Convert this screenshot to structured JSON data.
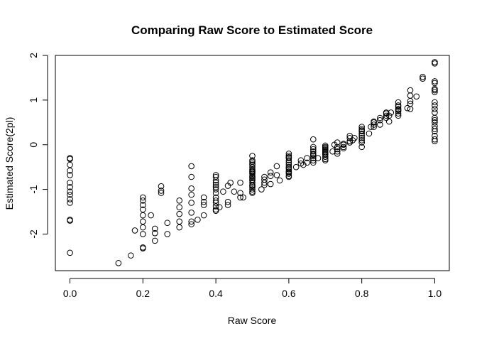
{
  "chart_data": {
    "type": "scatter",
    "title": "Comparing Raw Score to Estimated Score",
    "xlabel": "Raw Score",
    "ylabel": "Estimated Score(2pl)",
    "xlim": [
      -0.04,
      1.04
    ],
    "ylim": [
      -2.82,
      2.0
    ],
    "xticks": [
      0.0,
      0.2,
      0.4,
      0.6,
      0.8,
      1.0
    ],
    "xtick_labels": [
      "0.0",
      "0.2",
      "0.4",
      "0.6",
      "0.8",
      "1.0"
    ],
    "yticks": [
      -2,
      -1,
      0,
      1,
      2
    ],
    "ytick_labels": [
      "-2",
      "-1",
      "0",
      "1",
      "2"
    ],
    "marker": "open-circle",
    "grid": false,
    "series": [
      {
        "x": [
          0.0,
          0.0,
          0.0,
          0.0,
          0.0,
          0.0,
          0.0,
          0.0,
          0.0,
          0.0,
          0.0,
          0.0,
          0.0,
          0.0,
          0.133,
          0.167,
          0.178,
          0.2,
          0.2,
          0.2,
          0.2,
          0.2,
          0.2,
          0.2,
          0.2,
          0.2,
          0.2,
          0.222,
          0.233,
          0.233,
          0.233,
          0.25,
          0.25,
          0.25,
          0.267,
          0.267,
          0.3,
          0.3,
          0.3,
          0.3,
          0.3,
          0.333,
          0.333,
          0.333,
          0.333,
          0.333,
          0.333,
          0.333,
          0.333,
          0.35,
          0.367,
          0.367,
          0.367,
          0.367,
          0.4,
          0.4,
          0.4,
          0.4,
          0.4,
          0.4,
          0.4,
          0.4,
          0.4,
          0.4,
          0.4,
          0.4,
          0.4,
          0.4,
          0.41,
          0.42,
          0.433,
          0.433,
          0.433,
          0.44,
          0.45,
          0.467,
          0.467,
          0.467,
          0.475,
          0.5,
          0.5,
          0.5,
          0.5,
          0.5,
          0.5,
          0.5,
          0.5,
          0.5,
          0.5,
          0.5,
          0.5,
          0.5,
          0.5,
          0.5,
          0.5,
          0.5,
          0.5,
          0.5,
          0.5,
          0.5,
          0.5,
          0.5,
          0.525,
          0.533,
          0.533,
          0.533,
          0.533,
          0.55,
          0.55,
          0.55,
          0.567,
          0.567,
          0.575,
          0.6,
          0.6,
          0.6,
          0.6,
          0.6,
          0.6,
          0.6,
          0.6,
          0.6,
          0.6,
          0.6,
          0.6,
          0.6,
          0.6,
          0.6,
          0.62,
          0.633,
          0.633,
          0.64,
          0.65,
          0.65,
          0.667,
          0.667,
          0.667,
          0.667,
          0.667,
          0.667,
          0.667,
          0.667,
          0.667,
          0.667,
          0.68,
          0.7,
          0.7,
          0.7,
          0.7,
          0.7,
          0.7,
          0.7,
          0.7,
          0.7,
          0.7,
          0.7,
          0.7,
          0.72,
          0.725,
          0.733,
          0.733,
          0.733,
          0.733,
          0.733,
          0.75,
          0.75,
          0.75,
          0.75,
          0.767,
          0.767,
          0.767,
          0.767,
          0.775,
          0.78,
          0.8,
          0.8,
          0.8,
          0.8,
          0.8,
          0.8,
          0.8,
          0.8,
          0.8,
          0.8,
          0.82,
          0.825,
          0.833,
          0.833,
          0.833,
          0.833,
          0.85,
          0.85,
          0.85,
          0.867,
          0.867,
          0.867,
          0.867,
          0.875,
          0.875,
          0.88,
          0.9,
          0.9,
          0.9,
          0.9,
          0.9,
          0.9,
          0.9,
          0.9,
          0.925,
          0.933,
          0.933,
          0.933,
          0.933,
          0.933,
          0.95,
          0.967,
          0.967,
          1.0,
          1.0,
          1.0,
          1.0,
          1.0,
          1.0,
          1.0,
          1.0,
          1.0,
          1.0,
          1.0,
          1.0,
          1.0,
          1.0,
          1.0,
          1.0,
          1.0,
          1.0,
          1.0,
          1.0
        ],
        "y": [
          -0.32,
          -0.45,
          -0.58,
          -0.68,
          -0.85,
          -0.95,
          -1.05,
          -1.12,
          -1.22,
          -1.3,
          -1.68,
          -1.7,
          -2.42,
          -0.3,
          -2.65,
          -2.48,
          -1.92,
          -1.18,
          -1.25,
          -1.35,
          -1.45,
          -1.58,
          -1.72,
          -1.85,
          -2.0,
          -2.3,
          -2.32,
          -1.58,
          -1.88,
          -1.98,
          -2.15,
          -0.93,
          -1.03,
          -1.08,
          -1.75,
          -2.0,
          -1.25,
          -1.4,
          -1.55,
          -1.72,
          -1.85,
          -0.48,
          -0.72,
          -0.98,
          -1.12,
          -1.3,
          -1.52,
          -1.72,
          -1.78,
          -1.68,
          -1.18,
          -1.28,
          -1.35,
          -1.58,
          -0.68,
          -0.72,
          -0.8,
          -0.9,
          -1.0,
          -1.08,
          -1.18,
          -1.25,
          -1.3,
          -1.38,
          -1.45,
          -1.48,
          -0.85,
          -0.95,
          -1.4,
          -1.05,
          -0.92,
          -1.28,
          -1.35,
          -0.85,
          -1.05,
          -0.85,
          -1.08,
          -1.18,
          -1.18,
          -0.25,
          -0.35,
          -0.42,
          -0.5,
          -0.55,
          -0.6,
          -0.65,
          -0.7,
          -0.75,
          -0.8,
          -0.85,
          -0.9,
          -0.95,
          -1.0,
          -1.05,
          -1.08,
          -0.38,
          -0.45,
          -0.58,
          -0.62,
          -0.72,
          -0.78,
          -0.92,
          -1.0,
          -0.78,
          -0.85,
          -0.72,
          -0.9,
          -0.62,
          -0.7,
          -0.88,
          -0.48,
          -0.68,
          -0.8,
          -0.2,
          -0.25,
          -0.3,
          -0.35,
          -0.4,
          -0.45,
          -0.5,
          -0.55,
          -0.6,
          -0.65,
          -0.7,
          -0.28,
          -0.52,
          -0.62,
          -0.72,
          -0.5,
          -0.35,
          -0.42,
          -0.45,
          -0.3,
          -0.4,
          0.12,
          -0.1,
          -0.15,
          -0.2,
          -0.25,
          -0.3,
          -0.35,
          -0.4,
          -0.05,
          -0.22,
          -0.3,
          -0.02,
          -0.07,
          -0.12,
          -0.17,
          -0.22,
          -0.27,
          -0.32,
          -0.05,
          -0.1,
          -0.15,
          -0.2,
          -0.35,
          -0.15,
          0.0,
          0.05,
          -0.05,
          -0.1,
          -0.15,
          -0.2,
          0.0,
          -0.05,
          -0.08,
          0.02,
          0.05,
          0.08,
          0.15,
          0.2,
          0.1,
          0.15,
          0.4,
          0.3,
          0.25,
          0.2,
          0.15,
          0.1,
          0.05,
          0.35,
          0.32,
          -0.05,
          0.25,
          0.4,
          0.4,
          0.45,
          0.5,
          0.52,
          0.6,
          0.55,
          0.45,
          0.65,
          0.7,
          0.6,
          0.72,
          0.52,
          0.65,
          0.72,
          0.95,
          0.88,
          0.8,
          0.75,
          0.7,
          0.65,
          0.85,
          0.78,
          0.82,
          1.22,
          1.1,
          0.98,
          0.92,
          0.8,
          1.08,
          1.52,
          1.48,
          1.85,
          1.82,
          1.42,
          1.38,
          1.22,
          1.18,
          0.95,
          0.88,
          0.8,
          0.72,
          0.6,
          0.55,
          0.5,
          0.42,
          0.35,
          0.3,
          0.2,
          0.12,
          0.08,
          1.25
        ]
      }
    ]
  }
}
